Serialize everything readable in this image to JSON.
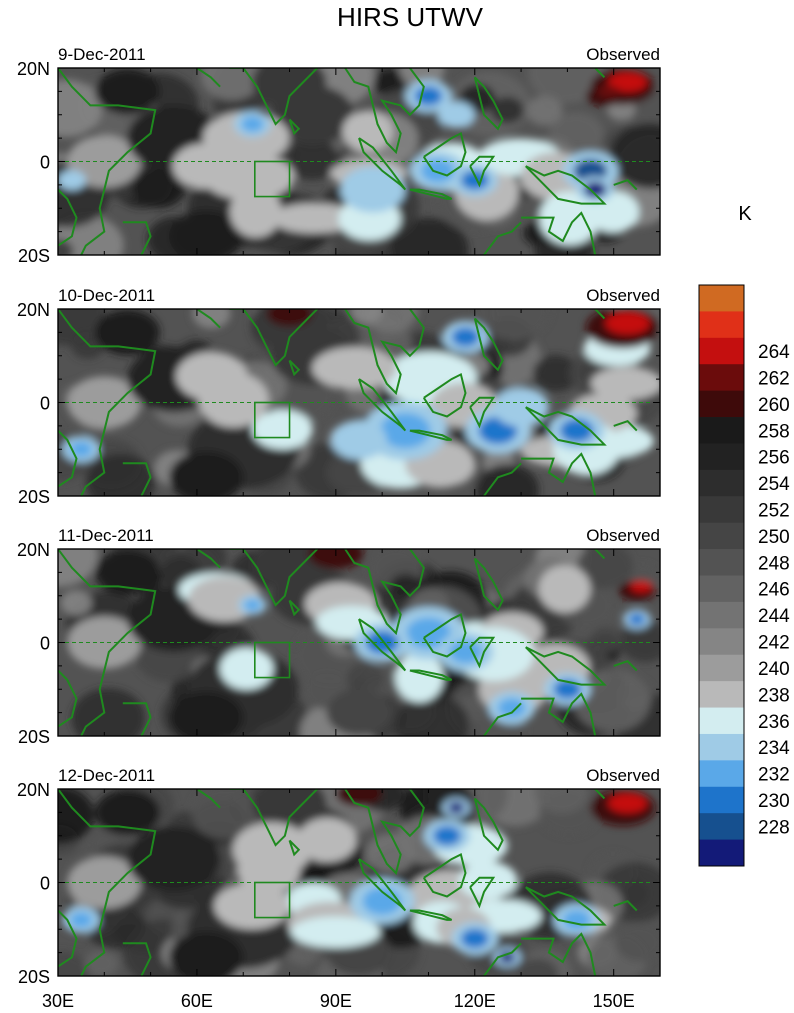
{
  "title": "HIRS UTWV",
  "unit": "K",
  "panels": [
    {
      "date": "9-Dec-2011",
      "label": "Observed"
    },
    {
      "date": "10-Dec-2011",
      "label": "Observed"
    },
    {
      "date": "11-Dec-2011",
      "label": "Observed"
    },
    {
      "date": "12-Dec-2011",
      "label": "Observed"
    }
  ],
  "lat_ticks": [
    "20N",
    "0",
    "20S"
  ],
  "lon_ticks": [
    "30E",
    "60E",
    "90E",
    "120E",
    "150E"
  ],
  "colorbar": {
    "colors": [
      "#131a78",
      "#16508f",
      "#1e74cb",
      "#5aa8e8",
      "#9fcbe6",
      "#d3edf0",
      "#b9b9b9",
      "#9c9c9c",
      "#858585",
      "#737373",
      "#626262",
      "#535353",
      "#454545",
      "#393939",
      "#2d2d2d",
      "#222222",
      "#1a1a1a",
      "#3e0a0a",
      "#6b0c0c",
      "#c40f0f",
      "#e03018",
      "#d06a22"
    ],
    "labels": [
      "228",
      "230",
      "232",
      "234",
      "236",
      "238",
      "240",
      "242",
      "244",
      "246",
      "248",
      "250",
      "252",
      "254",
      "256",
      "258",
      "260",
      "262",
      "264"
    ]
  },
  "colors": {
    "coast": "#1f8a1f",
    "box": "#1f8a1f"
  }
}
